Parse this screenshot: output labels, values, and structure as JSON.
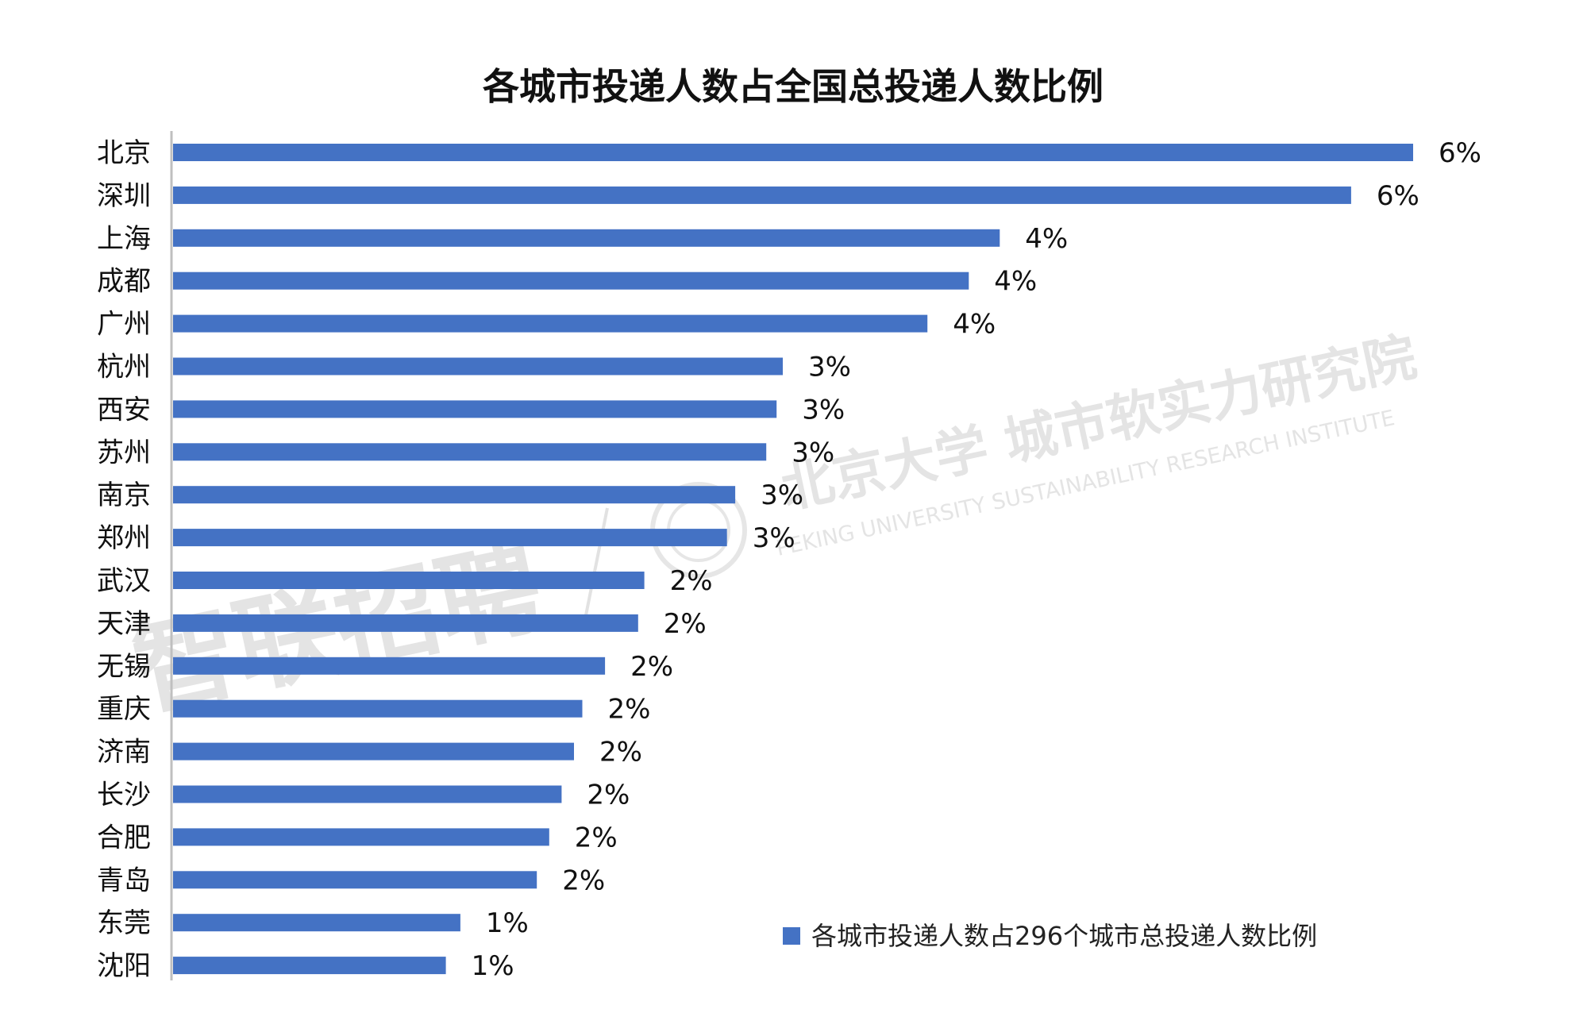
{
  "chart_data": {
    "type": "bar",
    "orientation": "horizontal",
    "title": "各城市投递人数占全国总投递人数比例",
    "categories": [
      "北京",
      "深圳",
      "上海",
      "成都",
      "广州",
      "杭州",
      "西安",
      "苏州",
      "南京",
      "郑州",
      "武汉",
      "天津",
      "无锡",
      "重庆",
      "济南",
      "长沙",
      "合肥",
      "青岛",
      "东莞",
      "沈阳"
    ],
    "series": [
      {
        "name": "各城市投递人数占296个城市总投递人数比例",
        "values": [
          6.0,
          5.7,
          4.0,
          3.85,
          3.65,
          2.95,
          2.92,
          2.87,
          2.72,
          2.68,
          2.28,
          2.25,
          2.09,
          1.98,
          1.94,
          1.88,
          1.82,
          1.76,
          1.39,
          1.32
        ],
        "data_labels": [
          "6%",
          "6%",
          "4%",
          "4%",
          "4%",
          "3%",
          "3%",
          "3%",
          "3%",
          "3%",
          "2%",
          "2%",
          "2%",
          "2%",
          "2%",
          "2%",
          "2%",
          "2%",
          "1%",
          "1%"
        ],
        "color": "#4472C4"
      }
    ],
    "xlim": [
      0,
      6
    ],
    "grid": false,
    "x_axis_visible": false,
    "legend_position": "bottom-right",
    "watermarks": [
      "智联招聘",
      "北京大学 城市软实力研究院",
      "PEKING UNIVERSITY SUSTAINABILITY RESEARCH INSTITUTE"
    ]
  },
  "colors": {
    "bar": "#4472C4",
    "axis": "#bfbfbf",
    "text": "#111111"
  }
}
